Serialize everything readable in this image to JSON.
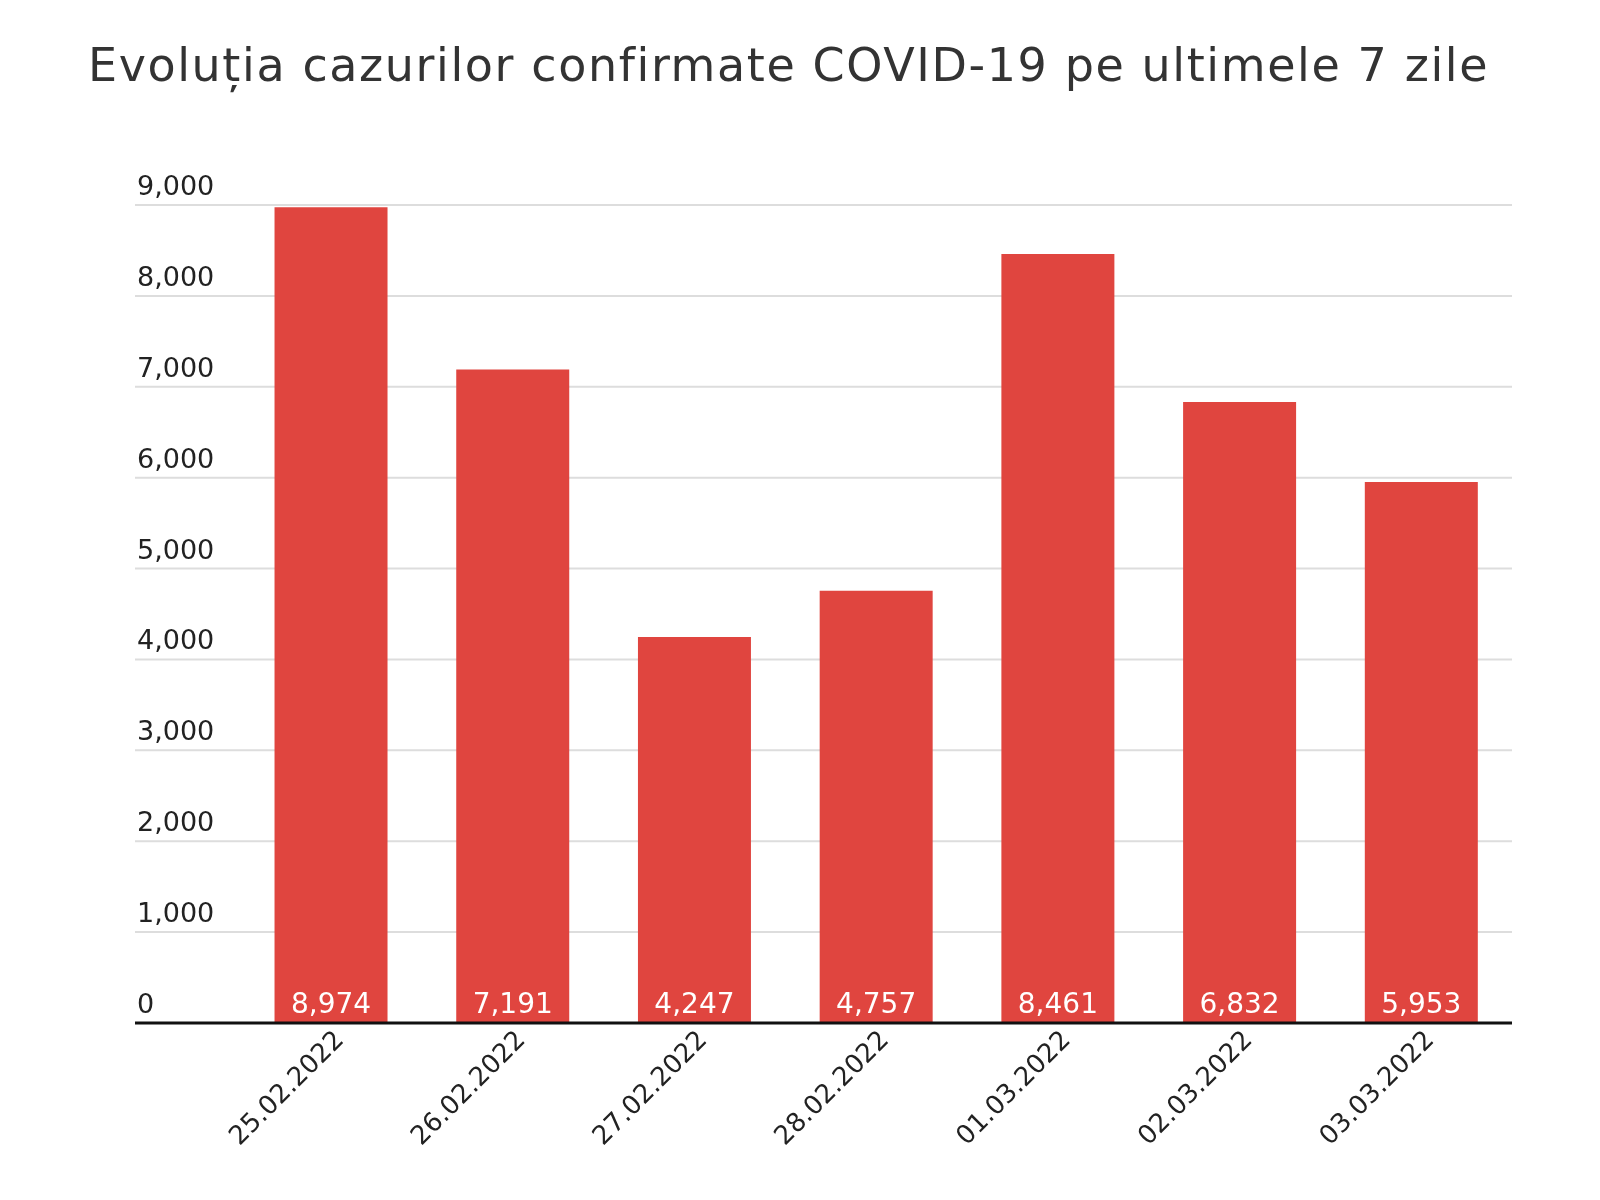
{
  "chart_data": {
    "type": "bar",
    "title": "Evoluția cazurilor confirmate COVID-19 pe ultimele 7 zile",
    "categories": [
      "25.02.2022",
      "26.02.2022",
      "27.02.2022",
      "28.02.2022",
      "01.03.2022",
      "02.03.2022",
      "03.03.2022"
    ],
    "values": [
      8974,
      7191,
      4247,
      4757,
      8461,
      6832,
      5953
    ],
    "value_labels": [
      "8,974",
      "7,191",
      "4,247",
      "4,757",
      "8,461",
      "6,832",
      "5,953"
    ],
    "color": "#e0453f",
    "ylim": [
      0,
      9000
    ],
    "yticks": [
      {
        "value": 0,
        "label": "0"
      },
      {
        "value": 1000,
        "label": "1,000"
      },
      {
        "value": 2000,
        "label": "2,000"
      },
      {
        "value": 3000,
        "label": "3,000"
      },
      {
        "value": 4000,
        "label": "4,000"
      },
      {
        "value": 5000,
        "label": "5,000"
      },
      {
        "value": 6000,
        "label": "6,000"
      },
      {
        "value": 7000,
        "label": "7,000"
      },
      {
        "value": 8000,
        "label": "8,000"
      },
      {
        "value": 9000,
        "label": "9,000"
      }
    ],
    "grid": "y",
    "legend": false
  }
}
